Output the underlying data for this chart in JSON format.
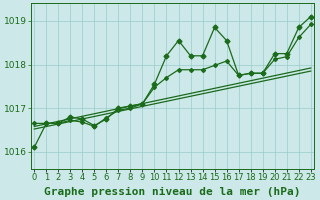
{
  "title": "Graphe pression niveau de la mer (hPa)",
  "bg_color": "#cce8e8",
  "plot_bg_color": "#cce8e8",
  "grid_color": "#99cccc",
  "line_color": "#1a6b1a",
  "x_labels": [
    "0",
    "1",
    "2",
    "3",
    "4",
    "5",
    "6",
    "7",
    "8",
    "9",
    "10",
    "11",
    "12",
    "13",
    "14",
    "15",
    "16",
    "17",
    "18",
    "19",
    "20",
    "21",
    "22",
    "23"
  ],
  "y_ticks": [
    1016,
    1017,
    1018,
    1019
  ],
  "ylim": [
    1015.6,
    1019.4
  ],
  "xlim": [
    -0.3,
    23.3
  ],
  "series1": [
    1016.1,
    1016.65,
    1016.65,
    1016.8,
    1016.75,
    1016.6,
    1016.75,
    1017.0,
    1017.05,
    1017.1,
    1017.55,
    1018.2,
    1018.55,
    1018.2,
    1018.2,
    1018.85,
    1018.55,
    1017.75,
    1017.8,
    1017.8,
    1018.25,
    1018.25,
    1018.85,
    1019.1
  ],
  "series2": [
    1016.65,
    1016.65,
    1016.65,
    1016.72,
    1016.68,
    1016.58,
    1016.78,
    1016.95,
    1017.0,
    1017.1,
    1017.48,
    1017.7,
    1017.88,
    1017.88,
    1017.88,
    1017.98,
    1018.08,
    1017.75,
    1017.8,
    1017.8,
    1018.12,
    1018.18,
    1018.62,
    1018.92
  ],
  "trend1_x": [
    0,
    23
  ],
  "trend1_y": [
    1016.52,
    1017.85
  ],
  "trend2_x": [
    0,
    23
  ],
  "trend2_y": [
    1016.58,
    1017.92
  ],
  "title_fontsize": 8,
  "tick_fontsize": 6.5
}
